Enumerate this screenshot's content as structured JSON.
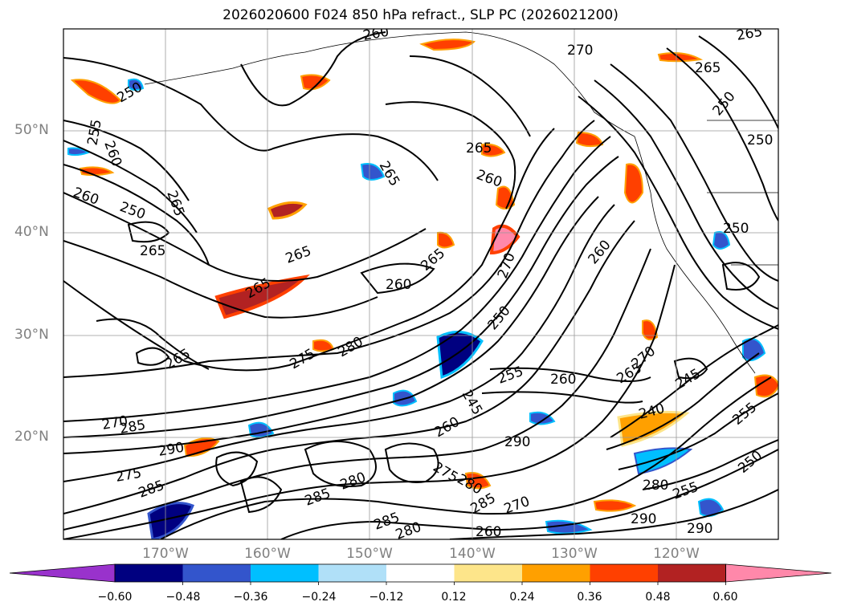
{
  "title": "2026020600 F024 850 hPa refract., SLP PC (2026021200)",
  "lat_labels": [
    "50°N",
    "40°N",
    "30°N",
    "20°N"
  ],
  "lon_labels": [
    "170°W",
    "160°W",
    "150°W",
    "140°W",
    "130°W",
    "120°W"
  ],
  "colorbar": {
    "tick_labels": [
      "−0.60",
      "−0.48",
      "−0.36",
      "−0.24",
      "−0.12",
      "0.12",
      "0.24",
      "0.36",
      "0.48",
      "0.60"
    ],
    "colors": [
      "#9932cc",
      "#000080",
      "#3355cc",
      "#00bfff",
      "#b0e0f8",
      "#ffffff",
      "#fde58a",
      "#ffa000",
      "#ff4000",
      "#b22222",
      "#ff88aa"
    ]
  },
  "contour_labels": [
    "260",
    "265",
    "270",
    "265",
    "255",
    "260",
    "250",
    "250",
    "265",
    "260",
    "250",
    "265",
    "260",
    "250",
    "265",
    "265",
    "260",
    "270",
    "260",
    "250",
    "265",
    "265",
    "265",
    "265",
    "280",
    "275",
    "250",
    "245",
    "255",
    "260",
    "265",
    "270",
    "240",
    "245",
    "255",
    "250",
    "270",
    "285",
    "290",
    "275",
    "285",
    "280",
    "285",
    "280",
    "275",
    "285",
    "290",
    "280",
    "255",
    "260",
    "290",
    "290",
    "285",
    "270",
    "280",
    "260"
  ]
}
